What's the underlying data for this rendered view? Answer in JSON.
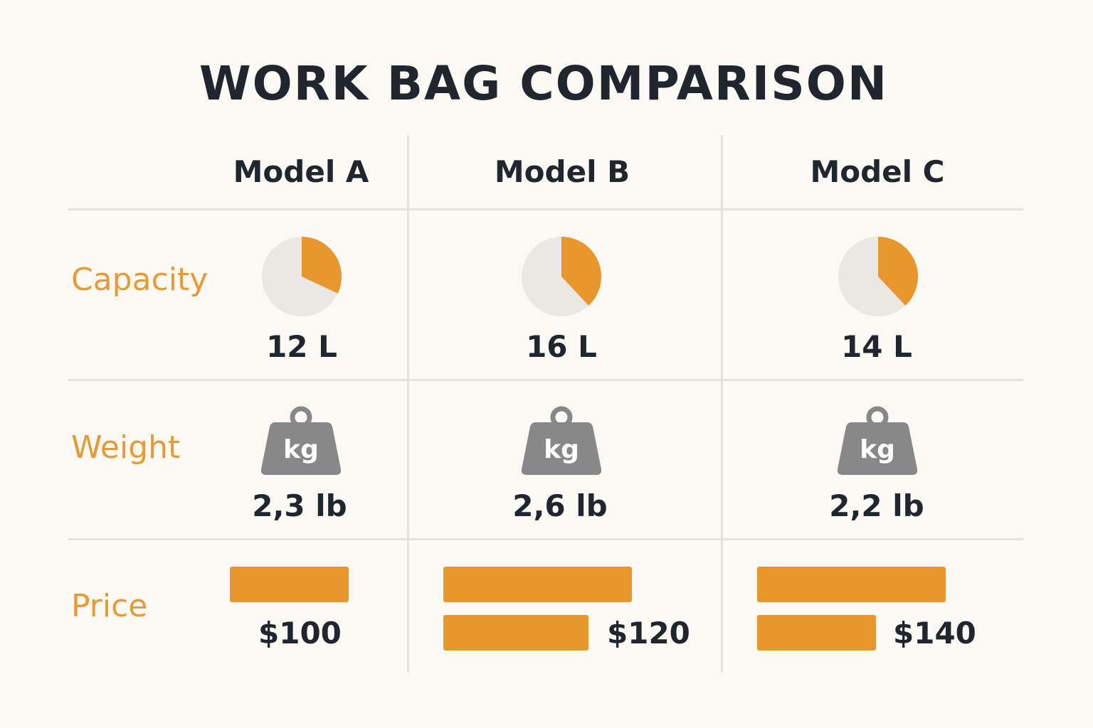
{
  "title": "WORK BAG COMPARISON",
  "colors": {
    "accent": "#e8962e",
    "pie_empty": "#ebe8e3",
    "weight_icon": "#888888",
    "grid": "#e4e2dd",
    "background": "#fbf9f4"
  },
  "rows": {
    "capacity": "Capacity",
    "weight": "Weight",
    "price": "Price"
  },
  "models": [
    {
      "name": "Model A",
      "capacity": "12 L",
      "capacity_fraction": 0.32,
      "weight": "2,3 lb",
      "price": "$100"
    },
    {
      "name": "Model B",
      "capacity": "16 L",
      "capacity_fraction": 0.38,
      "weight": "2,6 lb",
      "price": "$120"
    },
    {
      "name": "Model C",
      "capacity": "14 L",
      "capacity_fraction": 0.38,
      "weight": "2,2 lb",
      "price": "$140"
    }
  ],
  "weight_icon": {
    "name": "kg-weight-icon",
    "label": "kg"
  },
  "chart_data": {
    "type": "table",
    "title": "WORK BAG COMPARISON",
    "categories": [
      "Model A",
      "Model B",
      "Model C"
    ],
    "series": [
      {
        "name": "Capacity",
        "unit": "L",
        "values": [
          12,
          16,
          14
        ]
      },
      {
        "name": "Weight",
        "unit": "lb",
        "values": [
          2.3,
          2.6,
          2.2
        ]
      },
      {
        "name": "Price",
        "unit": "$",
        "values": [
          100,
          120,
          140
        ]
      }
    ],
    "price_bars": [
      {
        "model": "Model A",
        "bars": [
          0.63
        ]
      },
      {
        "model": "Model B",
        "bars": [
          1.0,
          0.77
        ]
      },
      {
        "model": "Model C",
        "bars": [
          1.0,
          0.63
        ]
      }
    ]
  }
}
